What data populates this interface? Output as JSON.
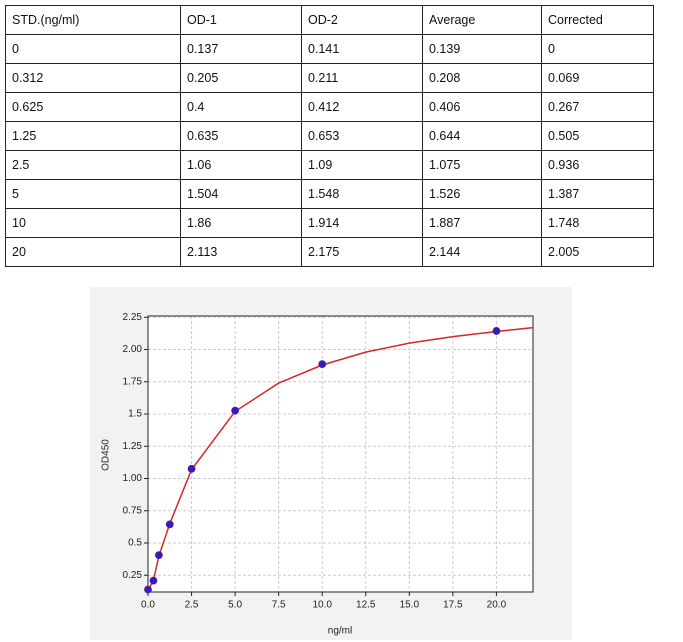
{
  "table": {
    "rows": [
      [
        "STD.(ng/ml)",
        "OD-1",
        "OD-2",
        "Average",
        "Corrected"
      ],
      [
        "0",
        "0.137",
        "0.141",
        "0.139",
        "0"
      ],
      [
        "0.312",
        "0.205",
        "0.211",
        "0.208",
        "0.069"
      ],
      [
        "0.625",
        "0.4",
        "0.412",
        "0.406",
        "0.267"
      ],
      [
        "1.25",
        "0.635",
        "0.653",
        "0.644",
        "0.505"
      ],
      [
        "2.5",
        "1.06",
        "1.09",
        "1.075",
        "0.936"
      ],
      [
        "5",
        "1.504",
        "1.548",
        "1.526",
        "1.387"
      ],
      [
        "10",
        "1.86",
        "1.914",
        "1.887",
        "1.748"
      ],
      [
        "20",
        "2.113",
        "2.175",
        "2.144",
        "2.005"
      ]
    ]
  },
  "chart_data": {
    "type": "scatter",
    "xlabel": "ng/ml",
    "ylabel": "OD450",
    "x": [
      0,
      0.312,
      0.625,
      1.25,
      2.5,
      5,
      10,
      20
    ],
    "values": [
      0.139,
      0.208,
      0.406,
      0.644,
      1.075,
      1.526,
      1.887,
      2.144
    ],
    "color": "#2a1fc0",
    "fit": {
      "color": "#d62728",
      "x": [
        0,
        0.312,
        0.625,
        1.25,
        2.5,
        5,
        7.5,
        10,
        12.5,
        15,
        17.5,
        20,
        22.1
      ],
      "values": [
        0.13,
        0.21,
        0.4,
        0.65,
        1.07,
        1.52,
        1.74,
        1.88,
        1.98,
        2.05,
        2.1,
        2.14,
        2.17
      ]
    },
    "xlim": [
      0,
      22.1
    ],
    "ylim": [
      0.12,
      2.26
    ],
    "xticks": [
      {
        "value": 0,
        "label": "0.0"
      },
      2.5,
      {
        "value": 5,
        "label": "5.0"
      },
      7.5,
      {
        "value": 10,
        "label": "10.0"
      },
      12.5,
      {
        "value": 15,
        "label": "15.0"
      },
      17.5,
      {
        "value": 20,
        "label": "20.0"
      }
    ],
    "yticks": [
      0.25,
      0.5,
      0.75,
      {
        "value": 1,
        "label": "1.00"
      },
      1.25,
      1.5,
      1.75,
      {
        "value": 2,
        "label": "2.00"
      },
      2.25
    ],
    "grid": true
  }
}
